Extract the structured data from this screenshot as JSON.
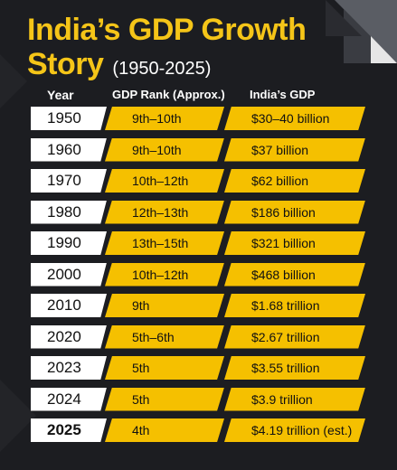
{
  "title": {
    "line1": "India’s GDP Growth",
    "line2": "Story",
    "years": "(1950-2025)"
  },
  "headers": {
    "year": "Year",
    "rank": "GDP Rank (Approx.)",
    "gdp": "India’s GDP"
  },
  "rows": [
    {
      "year": "1950",
      "rank": "9th–10th",
      "gdp": "$30–40 billion"
    },
    {
      "year": "1960",
      "rank": "9th–10th",
      "gdp": "$37 billion"
    },
    {
      "year": "1970",
      "rank": "10th–12th",
      "gdp": "$62 billion"
    },
    {
      "year": "1980",
      "rank": "12th–13th",
      "gdp": "$186 billion"
    },
    {
      "year": "1990",
      "rank": "13th–15th",
      "gdp": "$321 billion"
    },
    {
      "year": "2000",
      "rank": "10th–12th",
      "gdp": "$468 billion"
    },
    {
      "year": "2010",
      "rank": "9th",
      "gdp": "$1.68 trillion"
    },
    {
      "year": "2020",
      "rank": "5th–6th",
      "gdp": "$2.67 trillion"
    },
    {
      "year": "2023",
      "rank": "5th",
      "gdp": "$3.55 trillion"
    },
    {
      "year": "2024",
      "rank": "5th",
      "gdp": "$3.9 trillion"
    },
    {
      "year": "2025",
      "rank": "4th",
      "gdp": "$4.19 trillion (est.)"
    }
  ],
  "colors": {
    "background": "#1c1d21",
    "accent": "#f5c000",
    "title": "#f5c518",
    "year_cell": "#ffffff"
  }
}
